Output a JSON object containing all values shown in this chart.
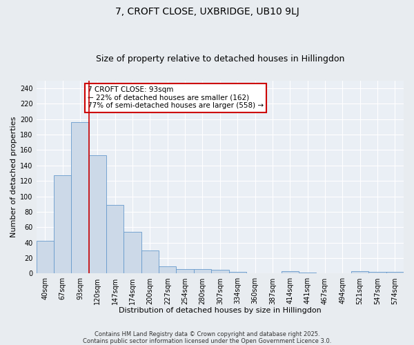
{
  "title": "7, CROFT CLOSE, UXBRIDGE, UB10 9LJ",
  "subtitle": "Size of property relative to detached houses in Hillingdon",
  "xlabel": "Distribution of detached houses by size in Hillingdon",
  "ylabel": "Number of detached properties",
  "bar_labels": [
    "40sqm",
    "67sqm",
    "93sqm",
    "120sqm",
    "147sqm",
    "174sqm",
    "200sqm",
    "227sqm",
    "254sqm",
    "280sqm",
    "307sqm",
    "334sqm",
    "360sqm",
    "387sqm",
    "414sqm",
    "441sqm",
    "467sqm",
    "494sqm",
    "521sqm",
    "547sqm",
    "574sqm"
  ],
  "bar_values": [
    42,
    127,
    196,
    153,
    89,
    54,
    30,
    9,
    6,
    6,
    5,
    2,
    0,
    0,
    3,
    1,
    0,
    0,
    3,
    2,
    2
  ],
  "bar_color": "#ccd9e8",
  "bar_edge_color": "#6699cc",
  "highlight_index": 2,
  "highlight_line_color": "#cc0000",
  "annotation_text": "7 CROFT CLOSE: 93sqm\n← 22% of detached houses are smaller (162)\n77% of semi-detached houses are larger (558) →",
  "annotation_box_color": "#ffffff",
  "annotation_border_color": "#cc0000",
  "ylim": [
    0,
    250
  ],
  "yticks": [
    0,
    20,
    40,
    60,
    80,
    100,
    120,
    140,
    160,
    180,
    200,
    220,
    240
  ],
  "background_color": "#e8ecf0",
  "plot_bg_color": "#eaeff5",
  "footer_line1": "Contains HM Land Registry data © Crown copyright and database right 2025.",
  "footer_line2": "Contains public sector information licensed under the Open Government Licence 3.0.",
  "title_fontsize": 10,
  "subtitle_fontsize": 9,
  "axis_label_fontsize": 8,
  "tick_fontsize": 7,
  "annotation_fontsize": 7.5,
  "footer_fontsize": 6
}
